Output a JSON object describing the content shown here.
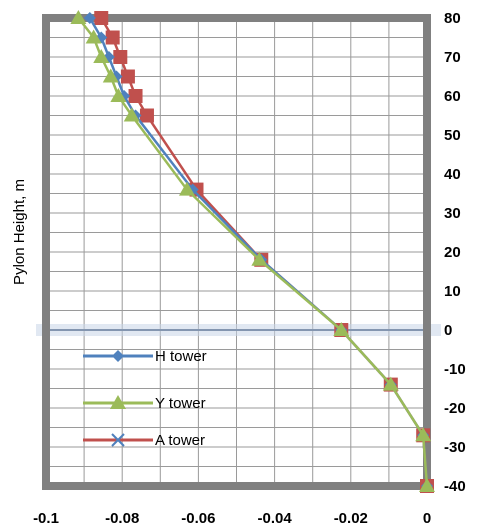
{
  "chart_data": {
    "type": "line",
    "ylabel": "Pylon Height, m",
    "xlabel": "",
    "title": "",
    "xlim": [
      -0.1,
      0
    ],
    "ylim": [
      -40,
      80
    ],
    "x_ticks": [
      "-0.1",
      "-0.08",
      "-0.06",
      "-0.04",
      "-0.02",
      "0"
    ],
    "y_ticks": [
      "80",
      "70",
      "60",
      "50",
      "40",
      "30",
      "20",
      "10",
      "0",
      "-10",
      "-20",
      "-30",
      "-40"
    ],
    "grid": true,
    "legend_position": "lower-left",
    "series": [
      {
        "name": "H tower",
        "color": "#4F81BD",
        "marker": "diamond",
        "points": [
          {
            "x": 0,
            "y": -40
          },
          {
            "x": -0.001,
            "y": -27
          },
          {
            "x": -0.0095,
            "y": -14
          },
          {
            "x": -0.0225,
            "y": 0
          },
          {
            "x": -0.0435,
            "y": 18
          },
          {
            "x": -0.0615,
            "y": 36
          },
          {
            "x": -0.0765,
            "y": 55
          },
          {
            "x": -0.0795,
            "y": 60
          },
          {
            "x": -0.0815,
            "y": 65
          },
          {
            "x": -0.0835,
            "y": 70
          },
          {
            "x": -0.0855,
            "y": 75
          },
          {
            "x": -0.0885,
            "y": 80
          }
        ]
      },
      {
        "name": "Y tower",
        "color": "#9BBB59",
        "marker": "triangle",
        "points": [
          {
            "x": 0,
            "y": -40
          },
          {
            "x": -0.001,
            "y": -27
          },
          {
            "x": -0.0095,
            "y": -14
          },
          {
            "x": -0.0225,
            "y": 0
          },
          {
            "x": -0.044,
            "y": 18
          },
          {
            "x": -0.063,
            "y": 36
          },
          {
            "x": -0.0775,
            "y": 55
          },
          {
            "x": -0.081,
            "y": 60
          },
          {
            "x": -0.083,
            "y": 65
          },
          {
            "x": -0.0855,
            "y": 70
          },
          {
            "x": -0.0875,
            "y": 75
          },
          {
            "x": -0.0915,
            "y": 80
          }
        ]
      },
      {
        "name": "A tower",
        "color": "#C0504D",
        "marker": "square",
        "points": [
          {
            "x": 0,
            "y": -40
          },
          {
            "x": -0.001,
            "y": -27
          },
          {
            "x": -0.0095,
            "y": -14
          },
          {
            "x": -0.0225,
            "y": 0
          },
          {
            "x": -0.0435,
            "y": 18
          },
          {
            "x": -0.0605,
            "y": 36
          },
          {
            "x": -0.0735,
            "y": 55
          },
          {
            "x": -0.0765,
            "y": 60
          },
          {
            "x": -0.0785,
            "y": 65
          },
          {
            "x": -0.0805,
            "y": 70
          },
          {
            "x": -0.0825,
            "y": 75
          },
          {
            "x": -0.0855,
            "y": 80
          }
        ]
      }
    ]
  }
}
